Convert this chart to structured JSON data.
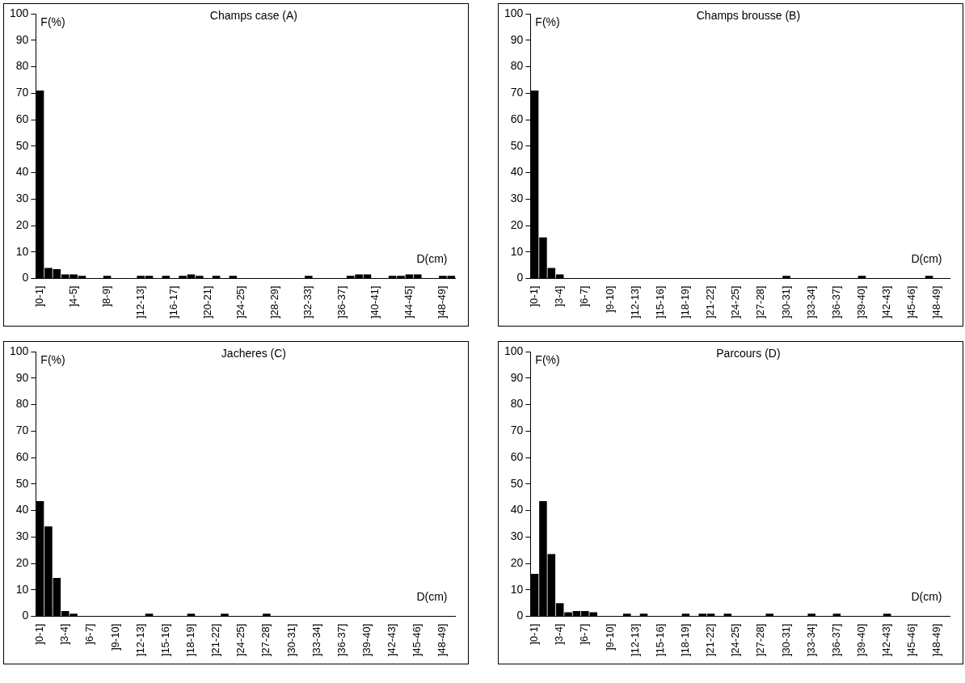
{
  "chart_data": [
    {
      "type": "bar",
      "title": "Champs case (A)",
      "xlabel": "D(cm)",
      "ylabel": "F(%)",
      "categories": [
        "]0-1]",
        null,
        null,
        null,
        "]4-5]",
        null,
        null,
        null,
        "]8-9]",
        null,
        null,
        null,
        "]12-13]",
        null,
        null,
        null,
        "]16-17]",
        null,
        null,
        null,
        "]20-21]",
        null,
        null,
        null,
        "]24-25]",
        null,
        null,
        null,
        "]28-29]",
        null,
        null,
        null,
        "]32-33]",
        null,
        null,
        null,
        "]36-37]",
        null,
        null,
        null,
        "]40-41]",
        null,
        null,
        null,
        "]44-45]",
        null,
        null,
        null,
        "]48-49]",
        null
      ],
      "values": [
        71,
        4,
        3.5,
        1.5,
        1.5,
        1,
        0,
        0,
        1,
        0,
        0,
        0,
        1,
        1,
        0,
        1,
        0,
        1,
        1.5,
        1,
        0,
        1,
        0,
        1,
        0,
        0,
        0,
        0,
        0,
        0,
        0,
        0,
        1,
        0,
        0,
        0,
        0,
        1,
        1.5,
        1.5,
        0,
        0,
        1,
        1,
        1.5,
        1.5,
        0,
        0,
        1,
        1
      ],
      "color": "#000000",
      "ylim": [
        0,
        100
      ],
      "yticks": [
        0,
        10,
        20,
        30,
        40,
        50,
        60,
        70,
        80,
        90,
        100
      ],
      "grid": false,
      "legend": false
    },
    {
      "type": "bar",
      "title": "Champs brousse (B)",
      "xlabel": "D(cm)",
      "ylabel": "F(%)",
      "categories": [
        "]0-1]",
        null,
        null,
        "]3-4]",
        null,
        null,
        "]6-7]",
        null,
        null,
        "]9-10]",
        null,
        null,
        "]12-13]",
        null,
        null,
        "]15-16]",
        null,
        null,
        "]18-19]",
        null,
        null,
        "]21-22]",
        null,
        null,
        "]24-25]",
        null,
        null,
        "]27-28]",
        null,
        null,
        "]30-31]",
        null,
        null,
        "]33-34]",
        null,
        null,
        "]36-37]",
        null,
        null,
        "]39-40]",
        null,
        null,
        "]42-43]",
        null,
        null,
        "]45-46]",
        null,
        null,
        "]48-49]",
        null
      ],
      "values": [
        71,
        15.5,
        4,
        1.5,
        0,
        0,
        0,
        0,
        0,
        0,
        0,
        0,
        0,
        0,
        0,
        0,
        0,
        0,
        0,
        0,
        0,
        0,
        0,
        0,
        0,
        0,
        0,
        0,
        0,
        0,
        1,
        0,
        0,
        0,
        0,
        0,
        0,
        0,
        0,
        1,
        0,
        0,
        0,
        0,
        0,
        0,
        0,
        1,
        0,
        0
      ],
      "color": "#000000",
      "ylim": [
        0,
        100
      ],
      "yticks": [
        0,
        10,
        20,
        30,
        40,
        50,
        60,
        70,
        80,
        90,
        100
      ],
      "grid": false,
      "legend": false
    },
    {
      "type": "bar",
      "title": "Jacheres (C)",
      "xlabel": "D(cm)",
      "ylabel": "F(%)",
      "categories": [
        "]0-1]",
        null,
        null,
        "]3-4]",
        null,
        null,
        "]6-7]",
        null,
        null,
        "]9-10]",
        null,
        null,
        "]12-13]",
        null,
        null,
        "]15-16]",
        null,
        null,
        "]18-19]",
        null,
        null,
        "]21-22]",
        null,
        null,
        "]24-25]",
        null,
        null,
        "]27-28]",
        null,
        null,
        "]30-31]",
        null,
        null,
        "]33-34]",
        null,
        null,
        "]36-37]",
        null,
        null,
        "]39-40]",
        null,
        null,
        "]42-43]",
        null,
        null,
        "]45-46]",
        null,
        null,
        "]48-49]",
        null
      ],
      "values": [
        43.5,
        34,
        14.5,
        2,
        1,
        0,
        0,
        0,
        0,
        0,
        0,
        0,
        0,
        1,
        0,
        0,
        0,
        0,
        1,
        0,
        0,
        0,
        1,
        0,
        0,
        0,
        0,
        1,
        0,
        0,
        0,
        0,
        0,
        0,
        0,
        0,
        0,
        0,
        0,
        0,
        0,
        0,
        0,
        0,
        0,
        0,
        0,
        0,
        0,
        0
      ],
      "color": "#000000",
      "ylim": [
        0,
        100
      ],
      "yticks": [
        0,
        10,
        20,
        30,
        40,
        50,
        60,
        70,
        80,
        90,
        100
      ],
      "grid": false,
      "legend": false
    },
    {
      "type": "bar",
      "title": "Parcours (D)",
      "xlabel": "D(cm)",
      "ylabel": "F(%)",
      "categories": [
        "]0-1]",
        null,
        null,
        "]3-4]",
        null,
        null,
        "]6-7]",
        null,
        null,
        "]9-10]",
        null,
        null,
        "]12-13]",
        null,
        null,
        "]15-16]",
        null,
        null,
        "]18-19]",
        null,
        null,
        "]21-22]",
        null,
        null,
        "]24-25]",
        null,
        null,
        "]27-28]",
        null,
        null,
        "]30-31]",
        null,
        null,
        "]33-34]",
        null,
        null,
        "]36-37]",
        null,
        null,
        "]39-40]",
        null,
        null,
        "]42-43]",
        null,
        null,
        "]45-46]",
        null,
        null,
        "]48-49]",
        null
      ],
      "values": [
        16,
        43.5,
        23.5,
        5,
        1.5,
        2,
        2,
        1.5,
        0,
        0,
        0,
        1,
        0,
        1,
        0,
        0,
        0,
        0,
        1,
        0,
        1,
        1,
        0,
        1,
        0,
        0,
        0,
        0,
        1,
        0,
        0,
        0,
        0,
        1,
        0,
        0,
        1,
        0,
        0,
        0,
        0,
        0,
        1,
        0,
        0,
        0,
        0,
        0,
        0,
        0
      ],
      "color": "#000000",
      "ylim": [
        0,
        100
      ],
      "yticks": [
        0,
        10,
        20,
        30,
        40,
        50,
        60,
        70,
        80,
        90,
        100
      ],
      "grid": false,
      "legend": false
    }
  ]
}
